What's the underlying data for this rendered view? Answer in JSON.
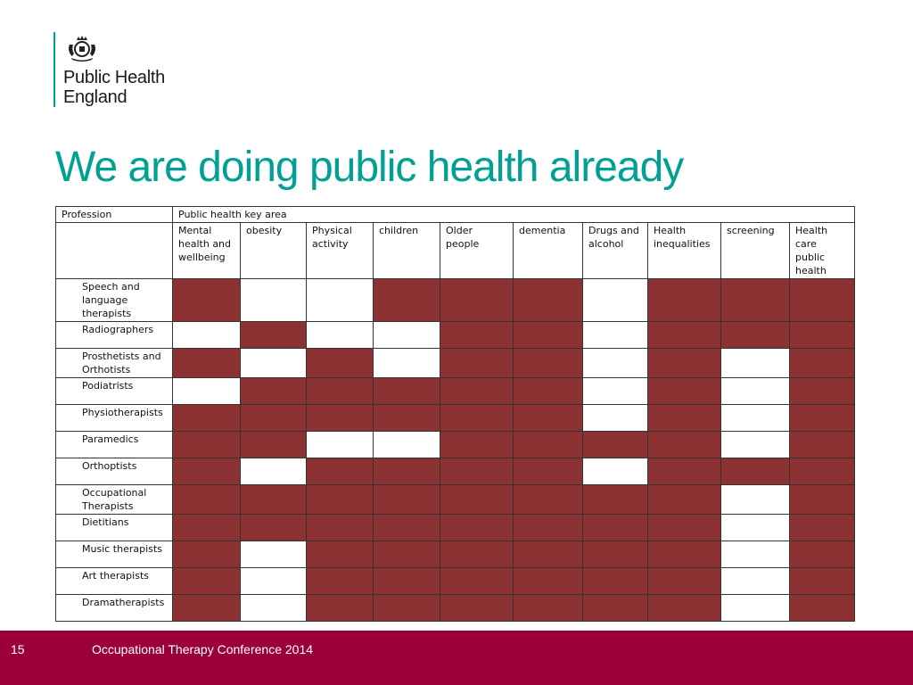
{
  "logo": {
    "line1": "Public Health",
    "line2": "England",
    "accent_color": "#00a092",
    "crest_icon": "royal-coat-of-arms"
  },
  "title": "We are doing public health already",
  "table": {
    "profession_header": "Profession",
    "area_header": "Public health key area",
    "columns": [
      "Mental health and wellbeing",
      "obesity",
      "Physical activity",
      "children",
      "Older people",
      "dementia",
      "Drugs and alcohol",
      "Health inequalities",
      "screening",
      "Health care public health"
    ],
    "rows": [
      {
        "profession": "Speech and language therapists",
        "cells": [
          1,
          0,
          0,
          1,
          1,
          1,
          0,
          1,
          1,
          1
        ]
      },
      {
        "profession": "Radiographers",
        "cells": [
          0,
          1,
          0,
          0,
          1,
          1,
          0,
          1,
          1,
          1
        ]
      },
      {
        "profession": "Prosthetists and Orthotists",
        "cells": [
          1,
          0,
          1,
          0,
          1,
          1,
          0,
          1,
          0,
          1
        ]
      },
      {
        "profession": "Podiatrists",
        "cells": [
          0,
          1,
          1,
          1,
          1,
          1,
          0,
          1,
          0,
          1
        ]
      },
      {
        "profession": "Physiotherapists",
        "cells": [
          1,
          1,
          1,
          1,
          1,
          1,
          0,
          1,
          0,
          1
        ]
      },
      {
        "profession": "Paramedics",
        "cells": [
          1,
          1,
          0,
          0,
          1,
          1,
          1,
          1,
          0,
          1
        ]
      },
      {
        "profession": "Orthoptists",
        "cells": [
          1,
          0,
          1,
          1,
          1,
          1,
          0,
          1,
          1,
          1
        ]
      },
      {
        "profession": "Occupational Therapists",
        "cells": [
          1,
          1,
          1,
          1,
          1,
          1,
          1,
          1,
          0,
          1
        ]
      },
      {
        "profession": "Dietitians",
        "cells": [
          1,
          1,
          1,
          1,
          1,
          1,
          1,
          1,
          0,
          1
        ]
      },
      {
        "profession": "Music therapists",
        "cells": [
          1,
          0,
          1,
          1,
          1,
          1,
          1,
          1,
          0,
          1
        ]
      },
      {
        "profession": "Art therapists",
        "cells": [
          1,
          0,
          1,
          1,
          1,
          1,
          1,
          1,
          0,
          1
        ]
      },
      {
        "profession": "Dramatherapists",
        "cells": [
          1,
          0,
          1,
          1,
          1,
          1,
          1,
          1,
          0,
          1
        ]
      }
    ],
    "filled_color": "#8c3232"
  },
  "footer": {
    "slide_number": "15",
    "text": "Occupational Therapy Conference 2014",
    "background_color": "#9b0038"
  }
}
